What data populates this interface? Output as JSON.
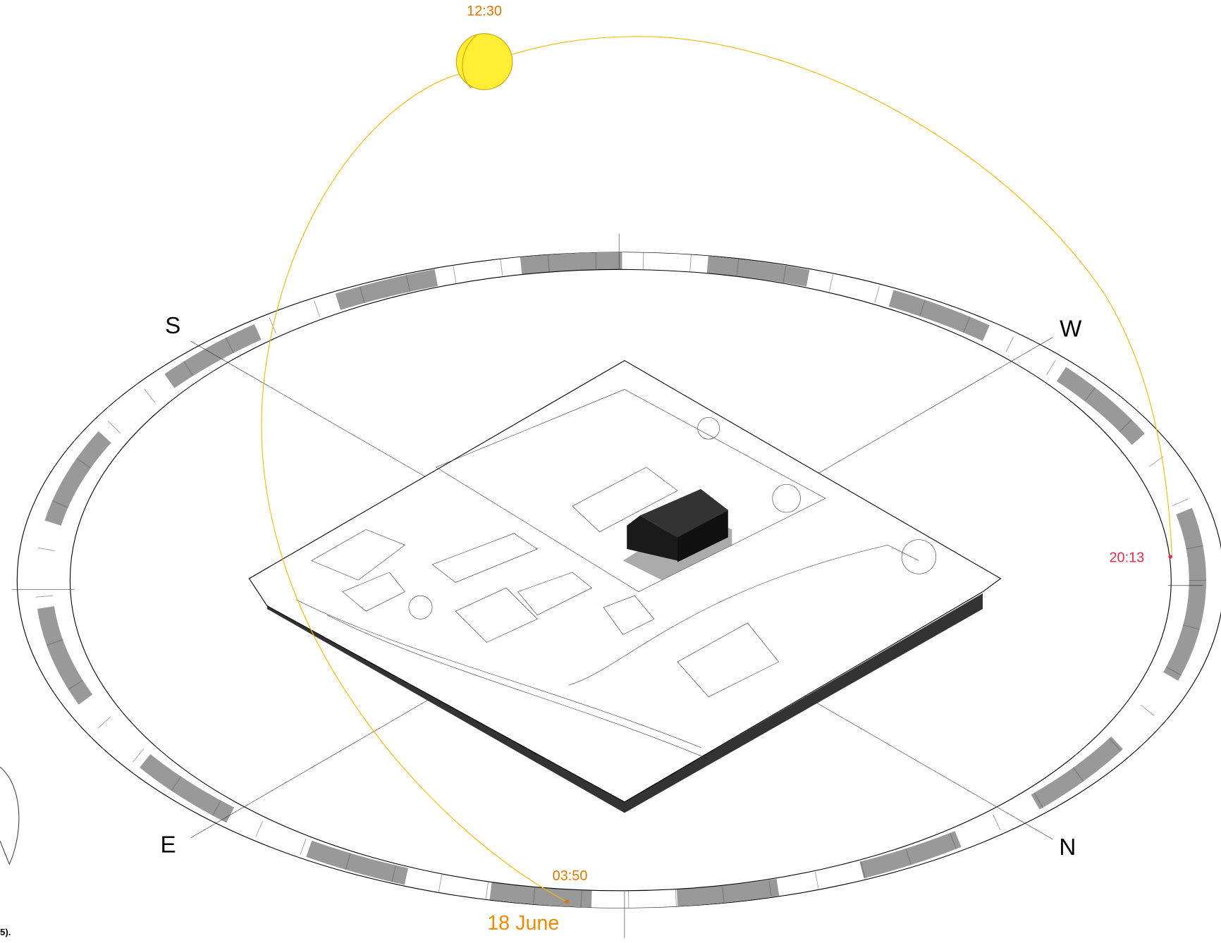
{
  "sun_path": {
    "noon_time": "12:30",
    "sunrise_time": "03:50",
    "sunset_time": "20:13",
    "date": "18 June"
  },
  "compass": {
    "south": "S",
    "west": "W",
    "east": "E",
    "north": "N"
  },
  "caption_fragment": "5)."
}
